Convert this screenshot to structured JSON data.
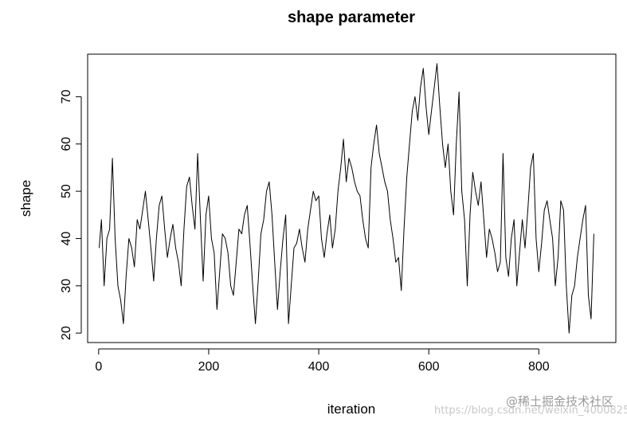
{
  "watermark": {
    "url_text": "https://blog.csdn.net/weixin_40008251",
    "community_text": "@稀土掘金技术社区"
  },
  "chart_data": {
    "type": "line",
    "title": "shape parameter",
    "xlabel": "iteration",
    "ylabel": "shape",
    "xlim": [
      -20,
      940
    ],
    "ylim": [
      18,
      79
    ],
    "x_ticks": [
      0,
      200,
      400,
      600,
      800
    ],
    "y_ticks": [
      20,
      30,
      40,
      50,
      60,
      70
    ],
    "x_tick_labels": [
      "0",
      "200",
      "400",
      "600",
      "800"
    ],
    "y_tick_labels": [
      "20",
      "30",
      "40",
      "50",
      "60",
      "70"
    ],
    "grid": false,
    "legend": "none",
    "line_color": "#000000",
    "series": [
      {
        "x": [
          1,
          5,
          10,
          15,
          20,
          25,
          30,
          35,
          40,
          45,
          50,
          55,
          60,
          65,
          70,
          75,
          80,
          85,
          90,
          95,
          100,
          105,
          110,
          115,
          120,
          125,
          130,
          135,
          140,
          145,
          150,
          155,
          160,
          165,
          170,
          175,
          180,
          185,
          190,
          195,
          200,
          205,
          210,
          215,
          220,
          225,
          230,
          235,
          240,
          245,
          250,
          255,
          260,
          265,
          270,
          275,
          280,
          285,
          290,
          295,
          300,
          305,
          310,
          315,
          320,
          325,
          330,
          335,
          340,
          345,
          350,
          355,
          360,
          365,
          370,
          375,
          380,
          385,
          390,
          395,
          400,
          405,
          410,
          415,
          420,
          425,
          430,
          435,
          440,
          445,
          450,
          455,
          460,
          465,
          470,
          475,
          480,
          485,
          490,
          495,
          500,
          505,
          510,
          515,
          520,
          525,
          530,
          535,
          540,
          545,
          550,
          555,
          560,
          565,
          570,
          575,
          580,
          585,
          590,
          595,
          600,
          605,
          610,
          615,
          620,
          625,
          630,
          635,
          640,
          645,
          650,
          655,
          660,
          665,
          670,
          675,
          680,
          685,
          690,
          695,
          700,
          705,
          710,
          715,
          720,
          725,
          730,
          735,
          740,
          745,
          750,
          755,
          760,
          765,
          770,
          775,
          780,
          785,
          790,
          795,
          800,
          805,
          810,
          815,
          820,
          825,
          830,
          835,
          840,
          845,
          850,
          855,
          860,
          865,
          870,
          875,
          880,
          885,
          890,
          895,
          900
        ],
        "values": [
          38,
          44,
          30,
          40,
          42,
          57,
          40,
          30,
          27,
          22,
          32,
          40,
          38,
          34,
          44,
          42,
          46,
          50,
          44,
          38,
          31,
          40,
          47,
          49,
          42,
          36,
          40,
          43,
          38,
          35,
          30,
          42,
          51,
          53,
          47,
          42,
          58,
          44,
          31,
          45,
          49,
          40,
          37,
          25,
          33,
          41,
          40,
          37,
          30,
          28,
          35,
          42,
          41,
          45,
          47,
          39,
          30,
          22,
          31,
          41,
          44,
          50,
          52,
          45,
          35,
          25,
          33,
          40,
          45,
          22,
          30,
          38,
          39,
          42,
          38,
          35,
          42,
          46,
          50,
          48,
          49,
          40,
          36,
          41,
          45,
          38,
          42,
          50,
          55,
          61,
          52,
          57,
          55,
          52,
          50,
          49,
          44,
          40,
          38,
          55,
          60,
          64,
          58,
          55,
          52,
          50,
          44,
          40,
          35,
          36,
          29,
          42,
          53,
          60,
          67,
          70,
          65,
          72,
          76,
          68,
          62,
          67,
          72,
          77,
          68,
          60,
          55,
          60,
          50,
          45,
          60,
          71,
          50,
          44,
          30,
          45,
          54,
          50,
          47,
          52,
          44,
          36,
          42,
          40,
          37,
          33,
          35,
          58,
          36,
          32,
          40,
          44,
          30,
          37,
          44,
          38,
          46,
          55,
          58,
          40,
          33,
          39,
          46,
          48,
          44,
          40,
          30,
          36,
          48,
          46,
          30,
          20,
          28,
          30,
          36,
          40,
          44,
          47,
          28,
          23,
          41
        ]
      }
    ]
  }
}
